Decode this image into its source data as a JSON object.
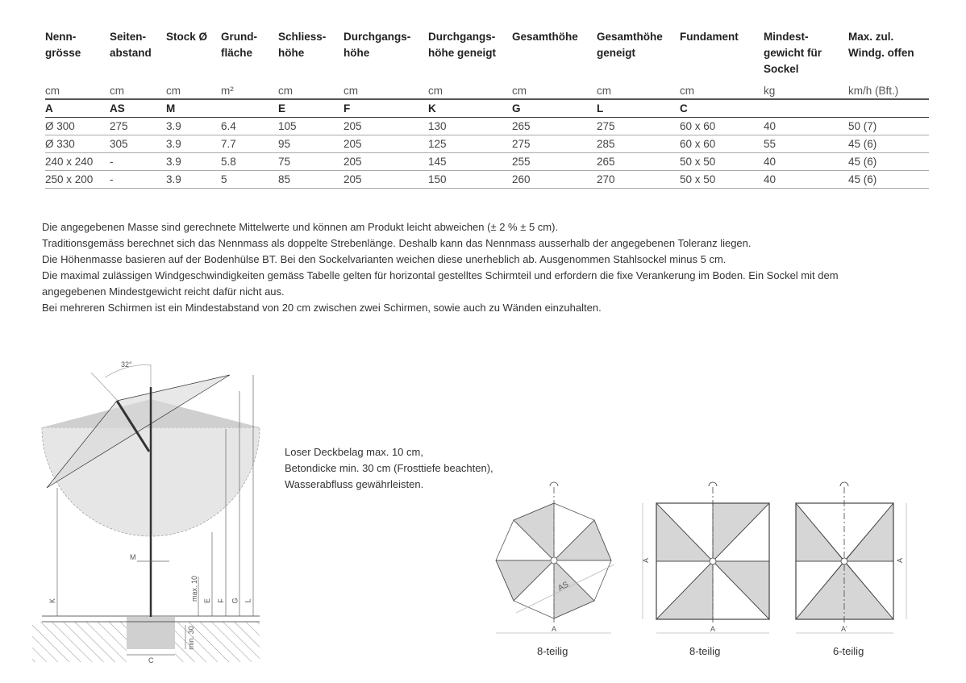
{
  "table": {
    "headers": [
      "Nenn-\ngrösse",
      "Seiten-\nabstand",
      "Stock Ø",
      "Grund-\nfläche",
      "Schliess-\nhöhe",
      "Durchgangs-\nhöhe",
      "Durchgangs-\nhöhe geneigt",
      "Gesamthöhe",
      "Gesamthöhe\ngeneigt",
      "Fundament",
      "Mindest-\ngewicht für\nSockel",
      "Max. zul.\nWindg. offen"
    ],
    "units": [
      "cm",
      "cm",
      "cm",
      "m²",
      "cm",
      "cm",
      "cm",
      "cm",
      "cm",
      "cm",
      "kg",
      "km/h (Bft.)"
    ],
    "letters": [
      "A",
      "AS",
      "M",
      "",
      "E",
      "F",
      "K",
      "G",
      "L",
      "C",
      "",
      ""
    ],
    "rows": [
      [
        "Ø 300",
        "275",
        "3.9",
        "6.4",
        "105",
        "205",
        "130",
        "265",
        "275",
        "60 x 60",
        "40",
        "50 (7)"
      ],
      [
        "Ø 330",
        "305",
        "3.9",
        "7.7",
        "95",
        "205",
        "125",
        "275",
        "285",
        "60 x 60",
        "55",
        "45 (6)"
      ],
      [
        "240 x 240",
        "-",
        "3.9",
        "5.8",
        "75",
        "205",
        "145",
        "255",
        "265",
        "50 x 50",
        "40",
        "45 (6)"
      ],
      [
        "250 x 200",
        "-",
        "3.9",
        "5",
        "85",
        "205",
        "150",
        "260",
        "270",
        "50 x 50",
        "40",
        "45 (6)"
      ]
    ]
  },
  "notes": [
    "Die angegebenen Masse sind gerechnete Mittelwerte und können am Produkt leicht abweichen (± 2 % ± 5 cm).",
    "Traditionsgemäss berechnet sich das Nennmass als doppelte Strebenlänge. Deshalb kann das Nennmass ausserhalb der angegebenen Toleranz liegen.",
    "Die Höhenmasse basieren auf der Bodenhülse BT. Bei den Sockelvarianten weichen diese unerheblich ab. Ausgenommen Stahlsockel minus 5 cm.",
    "Die maximal zulässigen Windgeschwindigkeiten gemäss Tabelle gelten für horizontal gestelltes Schirmteil und erfordern die fixe Verankerung im Boden. Ein Sockel mit dem",
    "angegebenen Mindestgewicht reicht dafür nicht aus.",
    "Bei mehreren Schirmen ist ein Mindestabstand von 20 cm zwischen zwei Schirmen, sowie auch zu Wänden einzuhalten."
  ],
  "installation_note": [
    "Loser Deckbelag max. 10 cm,",
    "Betondicke min. 30 cm (Frosttiefe beachten),",
    "Wasserabfluss gewährleisten."
  ],
  "side_diagram": {
    "angle": "32°",
    "labels": {
      "M": "M",
      "K": "K",
      "max10": "max. 10",
      "E": "E",
      "F": "F",
      "G": "G",
      "L": "L",
      "min30": "min. 30",
      "C": "C"
    }
  },
  "top_views": [
    {
      "caption": "8-teilig",
      "width_label": "A",
      "side_label": "AS"
    },
    {
      "caption": "8-teilig",
      "width_label": "A",
      "height_label": "A"
    },
    {
      "caption": "6-teilig",
      "width_label": "A'",
      "height_label": "A"
    }
  ],
  "colors": {
    "shade": "#d6d6d6",
    "line": "#333333"
  }
}
